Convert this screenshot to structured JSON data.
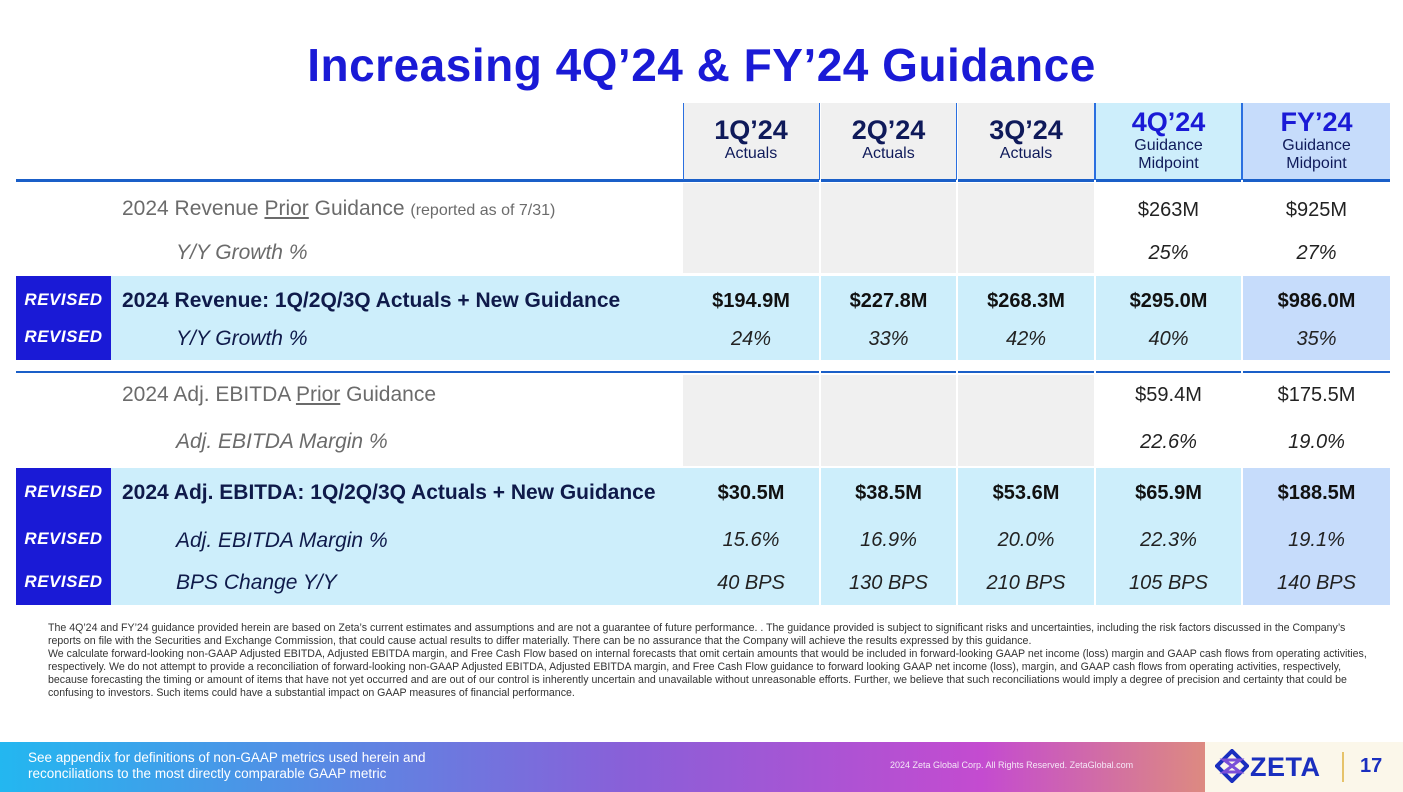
{
  "title": "Increasing 4Q’24 & FY’24 Guidance",
  "columns": [
    {
      "q": "1Q’24",
      "sub": "Actuals"
    },
    {
      "q": "2Q’24",
      "sub": "Actuals"
    },
    {
      "q": "3Q’24",
      "sub": "Actuals"
    },
    {
      "q": "4Q’24",
      "sub": "Guidance Midpoint"
    },
    {
      "q": "FY’24",
      "sub": "Guidance Midpoint"
    }
  ],
  "revised_label": "REVISED",
  "rows": {
    "rev_prior": {
      "pre": "2024 Revenue ",
      "u": "Prior",
      "post": " Guidance ",
      "small": "(reported as of 7/31)",
      "vals": [
        "",
        "",
        "",
        "$263M",
        "$925M"
      ]
    },
    "rev_prior_growth": {
      "label": "Y/Y Growth %",
      "vals": [
        "",
        "",
        "",
        "25%",
        "27%"
      ]
    },
    "rev_revised": {
      "label": "2024 Revenue: 1Q/2Q/3Q Actuals + New Guidance",
      "vals": [
        "$194.9M",
        "$227.8M",
        "$268.3M",
        "$295.0M",
        "$986.0M"
      ]
    },
    "rev_revised_growth": {
      "label": "Y/Y Growth %",
      "vals": [
        "24%",
        "33%",
        "42%",
        "40%",
        "35%"
      ]
    },
    "ebitda_prior": {
      "pre": "2024 Adj. EBITDA ",
      "u": "Prior",
      "post": " Guidance",
      "vals": [
        "",
        "",
        "",
        "$59.4M",
        "$175.5M"
      ]
    },
    "ebitda_prior_margin": {
      "label": "Adj. EBITDA Margin %",
      "vals": [
        "",
        "",
        "",
        "22.6%",
        "19.0%"
      ]
    },
    "ebitda_revised": {
      "label": "2024 Adj. EBITDA: 1Q/2Q/3Q Actuals + New Guidance",
      "vals": [
        "$30.5M",
        "$38.5M",
        "$53.6M",
        "$65.9M",
        "$188.5M"
      ]
    },
    "ebitda_revised_margin": {
      "label": "Adj. EBITDA Margin %",
      "vals": [
        "15.6%",
        "16.9%",
        "20.0%",
        "22.3%",
        "19.1%"
      ]
    },
    "bps_change": {
      "label": "BPS Change Y/Y",
      "vals": [
        "40 BPS",
        "130 BPS",
        "210 BPS",
        "105 BPS",
        "140 BPS"
      ]
    }
  },
  "disclaimer": [
    "The 4Q’24 and FY’24 guidance provided herein are based on Zeta’s current estimates and assumptions and are not a guarantee of future performance.                  . The guidance provided is subject to significant risks and uncertainties, including the risk factors discussed in the Company’s reports on file with the Securities and Exchange Commission, that could cause actual results to differ materially. There can be no assurance that the Company will achieve the results expressed by this guidance.",
    "We calculate forward-looking non-GAAP Adjusted EBITDA, Adjusted EBITDA margin, and Free Cash Flow based on internal forecasts that omit certain amounts that would be included in forward-looking GAAP net income (loss) margin and GAAP cash flows from operating activities, respectively. We do not attempt to provide a reconciliation of forward-looking non-GAAP Adjusted EBITDA, Adjusted EBITDA margin, and Free Cash Flow guidance to forward looking GAAP net income (loss), margin, and GAAP cash flows from operating activities, respectively, because forecasting the timing or amount of items that have not yet occurred and are out of our control is inherently uncertain and unavailable without unreasonable efforts. Further, we believe that such reconciliations would imply a degree of precision and certainty that could be confusing to investors. Such items could have a substantial impact on GAAP measures of financial performance."
  ],
  "footer": {
    "note_line1": "See appendix for definitions of non-GAAP metrics used herein and",
    "note_line2": "reconciliations to the most directly comparable GAAP metric",
    "copyright": "2024 Zeta Global Corp. All Rights Reserved. ZetaGlobal.com",
    "logo": "ZETA",
    "page": "17"
  },
  "colors": {
    "title": "#1a1ad6",
    "revised_band": "#cdeefb",
    "revised_box": "#1a1ad6",
    "fy_column": "#c6dcfb",
    "actuals_grey": "#f0f0f0"
  }
}
